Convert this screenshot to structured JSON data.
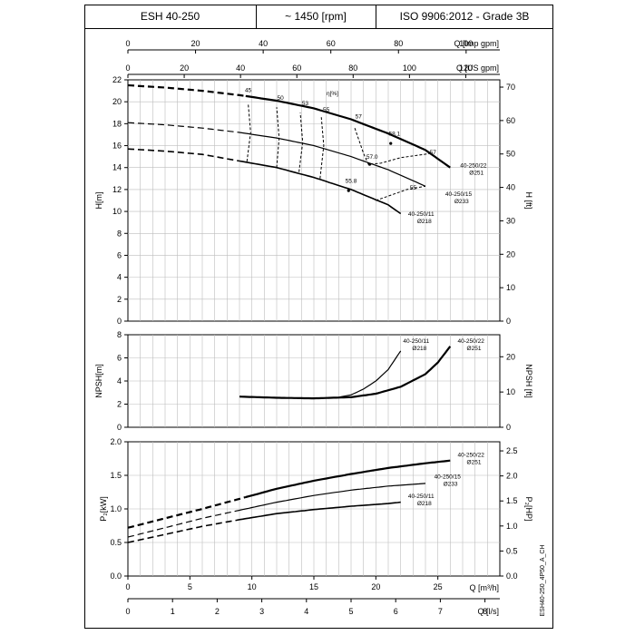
{
  "header": {
    "model": "ESH 40-250",
    "speed": "~ 1450 [rpm]",
    "standard": "ISO 9906:2012 - Grade 3B"
  },
  "drawing_code": "ESH40-250_4P50_A_CH",
  "chart_data": {
    "type": "line",
    "x_axes": {
      "imp_gpm": {
        "label": "Q [Imp gpm]",
        "ticks": [
          0,
          20,
          40,
          60,
          80,
          100
        ]
      },
      "us_gpm": {
        "label": "Q [US gpm]",
        "ticks": [
          0,
          20,
          40,
          60,
          80,
          100,
          120
        ]
      },
      "m3h": {
        "label": "Q [m³/h]",
        "ticks": [
          0,
          5,
          10,
          15,
          20,
          25
        ],
        "range": [
          0,
          30
        ]
      },
      "ls": {
        "label": "Q [l/s]",
        "ticks": [
          0,
          1,
          2,
          3,
          4,
          5,
          6,
          7,
          8
        ]
      }
    },
    "head": {
      "ylabel": "H[m]",
      "ylabel_right": "H [ft]",
      "ylim": [
        0,
        22
      ],
      "yticks": [
        0,
        2,
        4,
        6,
        8,
        10,
        12,
        14,
        16,
        18,
        20,
        22
      ],
      "yticks_right": [
        0,
        10,
        20,
        30,
        40,
        50,
        60,
        70
      ],
      "series": [
        {
          "name": "40-250/22",
          "diameter": "Ø251",
          "dashed_to": 9.5,
          "points": [
            [
              0,
              21.5
            ],
            [
              3,
              21.3
            ],
            [
              6,
              21.0
            ],
            [
              9,
              20.6
            ],
            [
              12,
              20.1
            ],
            [
              15,
              19.4
            ],
            [
              18,
              18.4
            ],
            [
              21,
              17.1
            ],
            [
              24,
              15.6
            ],
            [
              26,
              14.0
            ]
          ]
        },
        {
          "name": "40-250/15",
          "diameter": "Ø233",
          "dashed_to": 9.0,
          "points": [
            [
              0,
              18.1
            ],
            [
              3,
              17.9
            ],
            [
              6,
              17.6
            ],
            [
              9,
              17.2
            ],
            [
              12,
              16.7
            ],
            [
              15,
              16.0
            ],
            [
              18,
              15.0
            ],
            [
              21,
              13.8
            ],
            [
              24,
              12.3
            ]
          ]
        },
        {
          "name": "40-250/11",
          "diameter": "Ø218",
          "dashed_to": 9.0,
          "points": [
            [
              0,
              15.7
            ],
            [
              3,
              15.5
            ],
            [
              6,
              15.2
            ],
            [
              9,
              14.6
            ],
            [
              12,
              14.0
            ],
            [
              15,
              13.1
            ],
            [
              18,
              12.0
            ],
            [
              21,
              10.6
            ],
            [
              22,
              9.8
            ]
          ]
        }
      ],
      "efficiency_label": "η[%]",
      "efficiency_values": [
        "45",
        "50",
        "53",
        "55",
        "57",
        "58.1",
        "57",
        "57.0",
        "55.8",
        "55"
      ]
    },
    "npsh": {
      "ylabel": "NPSH[m]",
      "ylabel_right": "NPSH [ft]",
      "ylim": [
        0,
        8
      ],
      "yticks": [
        0,
        2,
        4,
        6,
        8
      ],
      "yticks_right": [
        0,
        10,
        20
      ],
      "series": [
        {
          "name": "40-250/11",
          "diameter": "Ø218",
          "points": [
            [
              17,
              2.6
            ],
            [
              18,
              2.8
            ],
            [
              19,
              3.3
            ],
            [
              20,
              4.0
            ],
            [
              21,
              5.0
            ],
            [
              22,
              6.6
            ]
          ]
        },
        {
          "name": "40-250/22",
          "diameter": "Ø251",
          "points": [
            [
              9,
              2.65
            ],
            [
              12,
              2.55
            ],
            [
              15,
              2.5
            ],
            [
              18,
              2.6
            ],
            [
              20,
              2.9
            ],
            [
              22,
              3.5
            ],
            [
              24,
              4.6
            ],
            [
              25,
              5.6
            ],
            [
              26,
              7.0
            ]
          ]
        }
      ]
    },
    "power": {
      "ylabel": "P₂[kW]",
      "ylabel_right": "P₂[HP]",
      "ylim": [
        0,
        2.0
      ],
      "yticks": [
        "0.0",
        "0.5",
        "1.0",
        "1.5",
        "2.0"
      ],
      "yticks_right": [
        "0.0",
        "0.5",
        "1.0",
        "1.5",
        "2.0",
        "2.5"
      ],
      "series": [
        {
          "name": "40-250/22",
          "diameter": "Ø251",
          "dashed_to": 9.5,
          "points": [
            [
              0,
              0.72
            ],
            [
              3,
              0.86
            ],
            [
              6,
              1.0
            ],
            [
              9,
              1.15
            ],
            [
              12,
              1.3
            ],
            [
              15,
              1.42
            ],
            [
              18,
              1.52
            ],
            [
              21,
              1.61
            ],
            [
              24,
              1.68
            ],
            [
              26,
              1.72
            ]
          ]
        },
        {
          "name": "40-250/15",
          "diameter": "Ø233",
          "dashed_to": 9.0,
          "points": [
            [
              0,
              0.58
            ],
            [
              3,
              0.72
            ],
            [
              6,
              0.86
            ],
            [
              9,
              0.98
            ],
            [
              12,
              1.1
            ],
            [
              15,
              1.2
            ],
            [
              18,
              1.28
            ],
            [
              21,
              1.34
            ],
            [
              24,
              1.38
            ]
          ]
        },
        {
          "name": "40-250/11",
          "diameter": "Ø218",
          "dashed_to": 9.0,
          "points": [
            [
              0,
              0.5
            ],
            [
              3,
              0.62
            ],
            [
              6,
              0.74
            ],
            [
              9,
              0.84
            ],
            [
              12,
              0.93
            ],
            [
              15,
              0.99
            ],
            [
              18,
              1.04
            ],
            [
              21,
              1.08
            ],
            [
              22,
              1.1
            ]
          ]
        }
      ]
    }
  }
}
